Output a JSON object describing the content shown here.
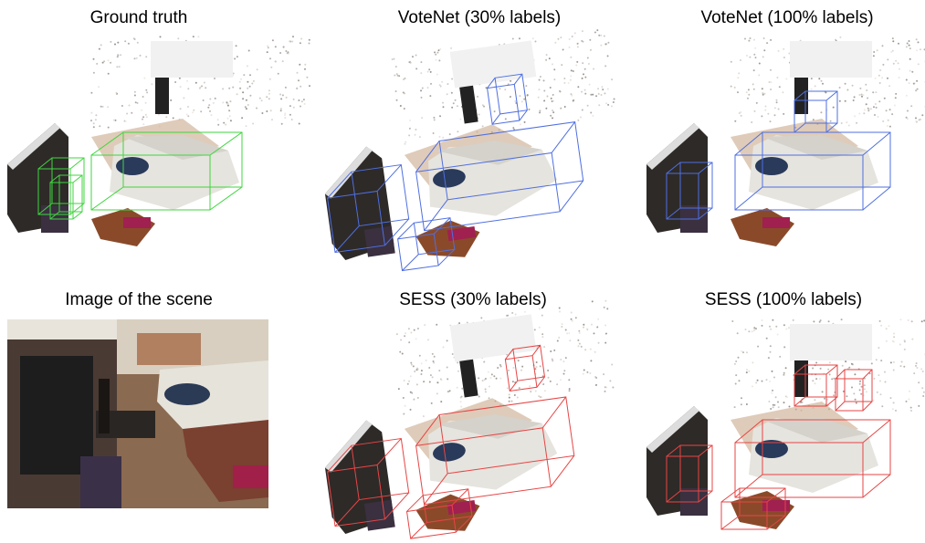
{
  "panels": [
    {
      "label": "Ground truth"
    },
    {
      "label": "VoteNet (30% labels)"
    },
    {
      "label": "VoteNet (100% labels)"
    },
    {
      "label": "Image of the scene"
    },
    {
      "label": "SESS (30% labels)"
    },
    {
      "label": "SESS (100% labels)"
    }
  ]
}
